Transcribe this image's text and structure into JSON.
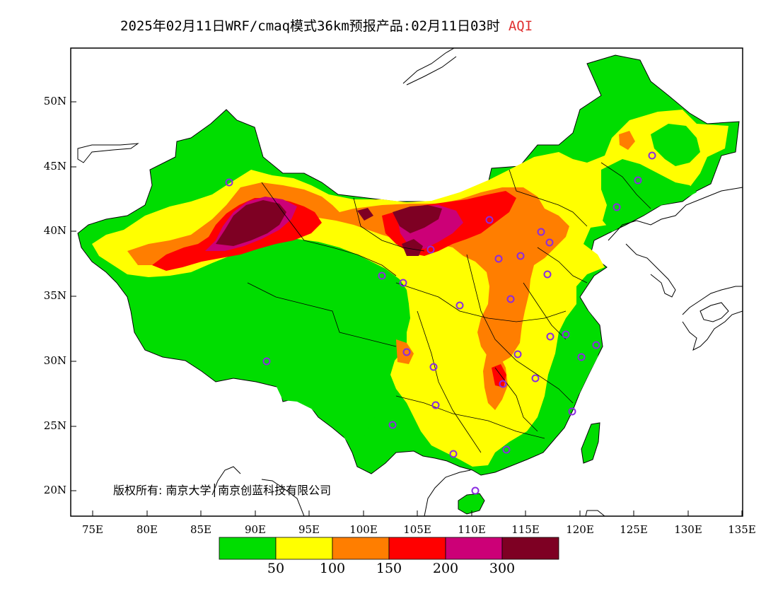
{
  "title": {
    "main": "2025年02月11日WRF/cmaq模式36km预报产品:02月11日03时",
    "variable": "AQI",
    "variable_color": "#e03030"
  },
  "axes": {
    "y_labels": [
      "50N",
      "45N",
      "40N",
      "35N",
      "30N",
      "25N",
      "20N"
    ],
    "x_labels": [
      "75E",
      "80E",
      "85E",
      "90E",
      "95E",
      "100E",
      "105E",
      "110E",
      "115E",
      "120E",
      "125E",
      "130E",
      "135E"
    ]
  },
  "copyright": "版权所有: 南京大学│南京创蓝科技有限公司",
  "legend": {
    "colors": [
      "#00dd00",
      "#ffff00",
      "#ff7e00",
      "#ff0000",
      "#cc0077",
      "#7e0023"
    ],
    "labels": [
      "50",
      "100",
      "150",
      "200",
      "300"
    ]
  },
  "colors": {
    "good": "#00dd00",
    "moderate": "#ffff00",
    "usg": "#ff7e00",
    "unhealthy": "#ff0000",
    "very_unhealthy": "#cc0077",
    "hazardous": "#7e0023",
    "station_marker": "#8a2be2"
  }
}
